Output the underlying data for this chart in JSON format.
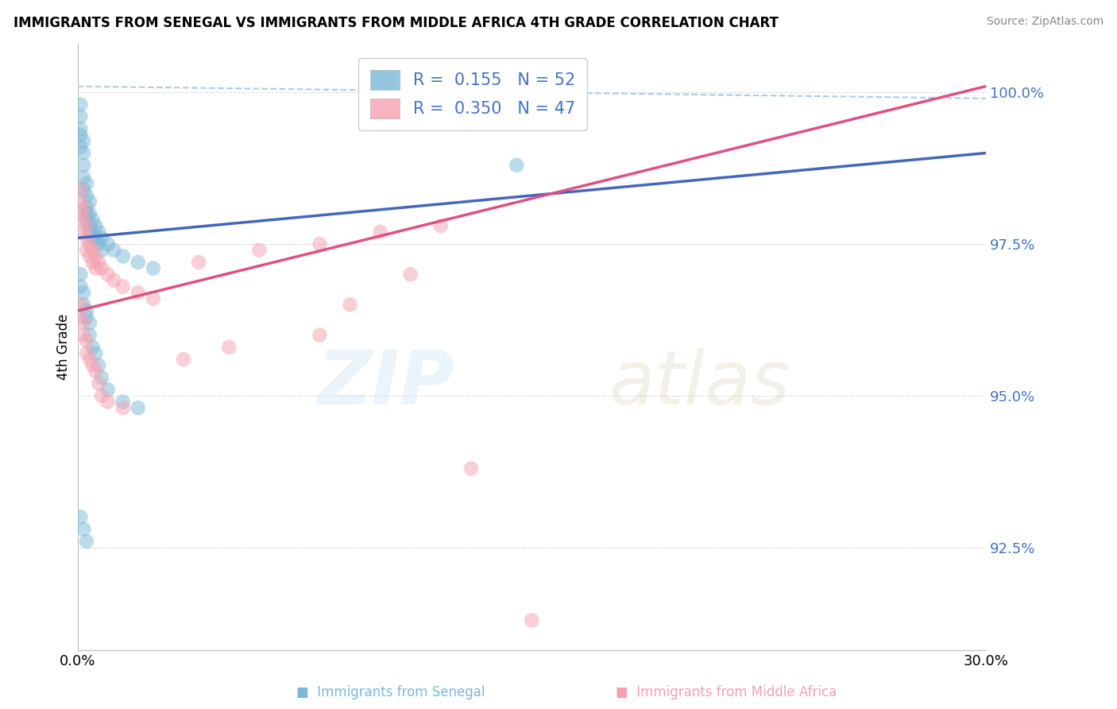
{
  "title": "IMMIGRANTS FROM SENEGAL VS IMMIGRANTS FROM MIDDLE AFRICA 4TH GRADE CORRELATION CHART",
  "source": "Source: ZipAtlas.com",
  "ylabel": "4th Grade",
  "ytick_labels": [
    "100.0%",
    "97.5%",
    "95.0%",
    "92.5%"
  ],
  "ytick_values": [
    1.0,
    0.975,
    0.95,
    0.925
  ],
  "xlim": [
    0.0,
    0.3
  ],
  "ylim": [
    0.908,
    1.008
  ],
  "legend_r_blue": "R =  0.155",
  "legend_n_blue": "N = 52",
  "legend_r_pink": "R =  0.350",
  "legend_n_pink": "N = 47",
  "color_blue": "#7bb8d9",
  "color_pink": "#f5a0b0",
  "color_blue_line": "#4466bb",
  "color_pink_line": "#e05080",
  "color_dashed": "#aaccee",
  "color_grid": "#dddddd",
  "color_ytick": "#4472C4",
  "blue_line_x0": 0.0,
  "blue_line_y0": 0.976,
  "blue_line_x1": 0.3,
  "blue_line_y1": 0.99,
  "pink_line_x0": 0.0,
  "pink_line_y0": 0.964,
  "pink_line_x1": 0.3,
  "pink_line_y1": 1.001,
  "dashed_line_x0": 0.0,
  "dashed_line_y0": 1.001,
  "dashed_line_x1": 0.3,
  "dashed_line_y1": 0.999,
  "blue_x": [
    0.001,
    0.001,
    0.001,
    0.001,
    0.001,
    0.002,
    0.002,
    0.002,
    0.002,
    0.002,
    0.003,
    0.003,
    0.003,
    0.003,
    0.003,
    0.004,
    0.004,
    0.004,
    0.004,
    0.005,
    0.005,
    0.005,
    0.006,
    0.006,
    0.007,
    0.007,
    0.008,
    0.008,
    0.01,
    0.012,
    0.015,
    0.02,
    0.025,
    0.001,
    0.001,
    0.002,
    0.002,
    0.003,
    0.003,
    0.004,
    0.004,
    0.005,
    0.006,
    0.007,
    0.008,
    0.01,
    0.015,
    0.02,
    0.001,
    0.002,
    0.003,
    0.145
  ],
  "blue_y": [
    0.998,
    0.996,
    0.994,
    0.993,
    0.991,
    0.992,
    0.99,
    0.988,
    0.986,
    0.984,
    0.985,
    0.983,
    0.981,
    0.98,
    0.979,
    0.982,
    0.98,
    0.978,
    0.977,
    0.979,
    0.977,
    0.976,
    0.978,
    0.976,
    0.977,
    0.975,
    0.976,
    0.974,
    0.975,
    0.974,
    0.973,
    0.972,
    0.971,
    0.97,
    0.968,
    0.967,
    0.965,
    0.964,
    0.963,
    0.962,
    0.96,
    0.958,
    0.957,
    0.955,
    0.953,
    0.951,
    0.949,
    0.948,
    0.93,
    0.928,
    0.926,
    0.988
  ],
  "pink_x": [
    0.001,
    0.001,
    0.001,
    0.002,
    0.002,
    0.002,
    0.003,
    0.003,
    0.003,
    0.004,
    0.004,
    0.005,
    0.005,
    0.006,
    0.006,
    0.007,
    0.008,
    0.01,
    0.012,
    0.015,
    0.02,
    0.025,
    0.001,
    0.001,
    0.002,
    0.002,
    0.003,
    0.003,
    0.004,
    0.005,
    0.006,
    0.007,
    0.008,
    0.01,
    0.015,
    0.04,
    0.06,
    0.08,
    0.1,
    0.12,
    0.08,
    0.05,
    0.035,
    0.09,
    0.11,
    0.13,
    0.15
  ],
  "pink_y": [
    0.984,
    0.982,
    0.98,
    0.981,
    0.979,
    0.977,
    0.978,
    0.976,
    0.974,
    0.975,
    0.973,
    0.974,
    0.972,
    0.973,
    0.971,
    0.972,
    0.971,
    0.97,
    0.969,
    0.968,
    0.967,
    0.966,
    0.965,
    0.963,
    0.962,
    0.96,
    0.959,
    0.957,
    0.956,
    0.955,
    0.954,
    0.952,
    0.95,
    0.949,
    0.948,
    0.972,
    0.974,
    0.975,
    0.977,
    0.978,
    0.96,
    0.958,
    0.956,
    0.965,
    0.97,
    0.938,
    0.913
  ]
}
